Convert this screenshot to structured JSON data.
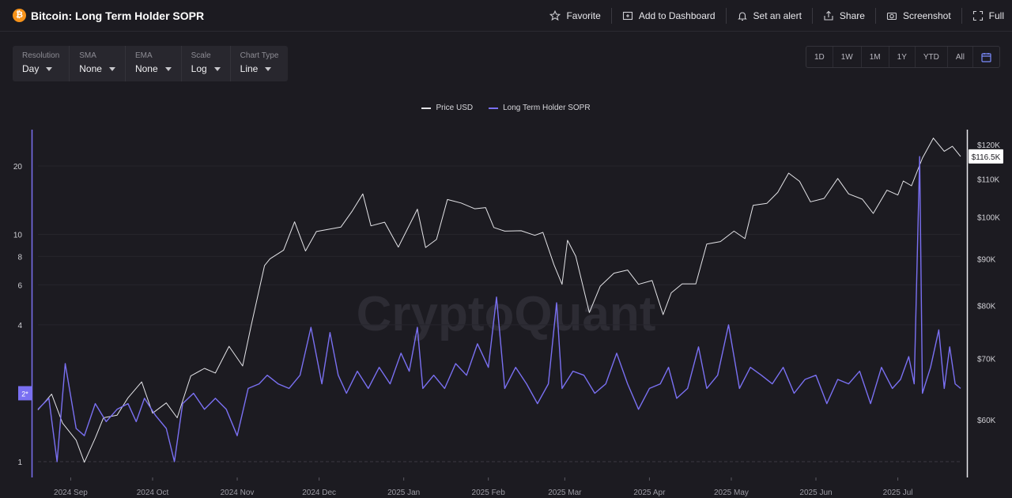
{
  "header": {
    "coin_icon": "bitcoin-icon",
    "title": "Bitcoin: Long Term Holder SOPR",
    "actions": [
      {
        "id": "favorite",
        "icon": "star-icon",
        "label": "Favorite"
      },
      {
        "id": "add-to-dashboard",
        "icon": "dashboard-add-icon",
        "label": "Add to Dashboard"
      },
      {
        "id": "set-alert",
        "icon": "bell-icon",
        "label": "Set an alert"
      },
      {
        "id": "share",
        "icon": "share-icon",
        "label": "Share"
      },
      {
        "id": "screenshot",
        "icon": "camera-icon",
        "label": "Screenshot"
      },
      {
        "id": "full",
        "icon": "fullscreen-icon",
        "label": "Full"
      }
    ]
  },
  "controls": [
    {
      "label": "Resolution",
      "value": "Day"
    },
    {
      "label": "SMA",
      "value": "None"
    },
    {
      "label": "EMA",
      "value": "None"
    },
    {
      "label": "Scale",
      "value": "Log"
    },
    {
      "label": "Chart Type",
      "value": "Line"
    }
  ],
  "ranges": [
    "1D",
    "1W",
    "1M",
    "1Y",
    "YTD",
    "All"
  ],
  "range_calendar_icon": "calendar-icon",
  "watermark": "CryptoQuant",
  "colors": {
    "price": "#e4e4e8",
    "sopr": "#7a70f2",
    "background": "#1c1b21",
    "price_badge_bg": "#ffffff",
    "sopr_badge_bg": "#7a70f2"
  },
  "chart_data": {
    "type": "line",
    "legend": [
      "Price USD",
      "Long Term Holder SOPR"
    ],
    "legend_position": "top-center",
    "left_axis": {
      "scale": "log",
      "ticks": [
        1,
        2,
        4,
        6,
        8,
        10,
        20
      ],
      "badge": "2*"
    },
    "right_axis": {
      "scale": "log",
      "ticks": [
        "$120K",
        "$110K",
        "$100K",
        "$90K",
        "$80K",
        "$70K",
        "$60K"
      ],
      "tick_values": [
        120000,
        110000,
        100000,
        90000,
        80000,
        70000,
        60000
      ],
      "current_value_label": "$116.5K"
    },
    "x_labels": [
      "2024 Sep",
      "2024 Oct",
      "2024 Nov",
      "2024 Dec",
      "2025 Jan",
      "2025 Feb",
      "2025 Mar",
      "2025 Apr",
      "2025 May",
      "2025 Jun",
      "2025 Jul"
    ],
    "x_start": "2024-08-20",
    "x_end": "2025-07-24",
    "series": [
      {
        "name": "Price USD",
        "axis": "right",
        "points": [
          [
            "2024-08-20",
            61500
          ],
          [
            "2024-08-25",
            64000
          ],
          [
            "2024-08-29",
            59500
          ],
          [
            "2024-09-03",
            57000
          ],
          [
            "2024-09-06",
            53900
          ],
          [
            "2024-09-10",
            57300
          ],
          [
            "2024-09-13",
            60300
          ],
          [
            "2024-09-18",
            60700
          ],
          [
            "2024-09-22",
            63400
          ],
          [
            "2024-09-27",
            66000
          ],
          [
            "2024-10-01",
            61000
          ],
          [
            "2024-10-06",
            62600
          ],
          [
            "2024-10-10",
            60300
          ],
          [
            "2024-10-15",
            67000
          ],
          [
            "2024-10-20",
            68300
          ],
          [
            "2024-10-24",
            67500
          ],
          [
            "2024-10-29",
            72200
          ],
          [
            "2024-11-03",
            68700
          ],
          [
            "2024-11-06",
            75800
          ],
          [
            "2024-11-11",
            88500
          ],
          [
            "2024-11-13",
            90000
          ],
          [
            "2024-11-18",
            92000
          ],
          [
            "2024-11-22",
            98800
          ],
          [
            "2024-11-26",
            91800
          ],
          [
            "2024-11-30",
            96400
          ],
          [
            "2024-12-05",
            97000
          ],
          [
            "2024-12-09",
            97500
          ],
          [
            "2024-12-13",
            101400
          ],
          [
            "2024-12-17",
            106000
          ],
          [
            "2024-12-20",
            97800
          ],
          [
            "2024-12-25",
            98700
          ],
          [
            "2024-12-30",
            92700
          ],
          [
            "2025-01-06",
            102000
          ],
          [
            "2025-01-09",
            92600
          ],
          [
            "2025-01-13",
            94500
          ],
          [
            "2025-01-17",
            104500
          ],
          [
            "2025-01-22",
            103600
          ],
          [
            "2025-01-27",
            102100
          ],
          [
            "2025-01-31",
            102400
          ],
          [
            "2025-02-03",
            97400
          ],
          [
            "2025-02-07",
            96500
          ],
          [
            "2025-02-13",
            96600
          ],
          [
            "2025-02-18",
            95500
          ],
          [
            "2025-02-21",
            96200
          ],
          [
            "2025-02-25",
            88700
          ],
          [
            "2025-02-28",
            84400
          ],
          [
            "2025-03-02",
            94300
          ],
          [
            "2025-03-05",
            90600
          ],
          [
            "2025-03-10",
            78600
          ],
          [
            "2025-03-14",
            84000
          ],
          [
            "2025-03-19",
            86800
          ],
          [
            "2025-03-24",
            87500
          ],
          [
            "2025-03-28",
            84400
          ],
          [
            "2025-04-02",
            85200
          ],
          [
            "2025-04-06",
            78200
          ],
          [
            "2025-04-09",
            82600
          ],
          [
            "2025-04-13",
            84500
          ],
          [
            "2025-04-18",
            84500
          ],
          [
            "2025-04-22",
            93400
          ],
          [
            "2025-04-27",
            94000
          ],
          [
            "2025-05-02",
            96500
          ],
          [
            "2025-05-06",
            94700
          ],
          [
            "2025-05-09",
            103000
          ],
          [
            "2025-05-14",
            103500
          ],
          [
            "2025-05-18",
            106400
          ],
          [
            "2025-05-22",
            111700
          ],
          [
            "2025-05-26",
            109400
          ],
          [
            "2025-05-30",
            103900
          ],
          [
            "2025-06-04",
            104800
          ],
          [
            "2025-06-09",
            110200
          ],
          [
            "2025-06-13",
            106000
          ],
          [
            "2025-06-18",
            104600
          ],
          [
            "2025-06-22",
            100900
          ],
          [
            "2025-06-27",
            107000
          ],
          [
            "2025-07-01",
            105700
          ],
          [
            "2025-07-03",
            109500
          ],
          [
            "2025-07-06",
            108200
          ],
          [
            "2025-07-10",
            116000
          ],
          [
            "2025-07-14",
            122000
          ],
          [
            "2025-07-18",
            118000
          ],
          [
            "2025-07-21",
            119500
          ],
          [
            "2025-07-24",
            116500
          ]
        ]
      },
      {
        "name": "Long Term Holder SOPR",
        "axis": "left",
        "points": [
          [
            "2024-08-20",
            1.7
          ],
          [
            "2024-08-24",
            1.9
          ],
          [
            "2024-08-27",
            1.0
          ],
          [
            "2024-08-30",
            2.7
          ],
          [
            "2024-09-03",
            1.4
          ],
          [
            "2024-09-06",
            1.3
          ],
          [
            "2024-09-10",
            1.8
          ],
          [
            "2024-09-14",
            1.5
          ],
          [
            "2024-09-18",
            1.7
          ],
          [
            "2024-09-22",
            1.8
          ],
          [
            "2024-09-25",
            1.5
          ],
          [
            "2024-09-28",
            1.9
          ],
          [
            "2024-10-02",
            1.6
          ],
          [
            "2024-10-06",
            1.4
          ],
          [
            "2024-10-09",
            1.0
          ],
          [
            "2024-10-12",
            1.8
          ],
          [
            "2024-10-16",
            2.0
          ],
          [
            "2024-10-20",
            1.7
          ],
          [
            "2024-10-24",
            1.9
          ],
          [
            "2024-10-28",
            1.7
          ],
          [
            "2024-11-01",
            1.3
          ],
          [
            "2024-11-05",
            2.1
          ],
          [
            "2024-11-09",
            2.2
          ],
          [
            "2024-11-12",
            2.4
          ],
          [
            "2024-11-16",
            2.2
          ],
          [
            "2024-11-20",
            2.1
          ],
          [
            "2024-11-24",
            2.4
          ],
          [
            "2024-11-28",
            3.9
          ],
          [
            "2024-12-02",
            2.2
          ],
          [
            "2024-12-05",
            3.7
          ],
          [
            "2024-12-08",
            2.4
          ],
          [
            "2024-12-11",
            2.0
          ],
          [
            "2024-12-15",
            2.5
          ],
          [
            "2024-12-19",
            2.1
          ],
          [
            "2024-12-23",
            2.6
          ],
          [
            "2024-12-27",
            2.2
          ],
          [
            "2024-12-31",
            3.0
          ],
          [
            "2025-01-03",
            2.5
          ],
          [
            "2025-01-06",
            3.9
          ],
          [
            "2025-01-08",
            2.1
          ],
          [
            "2025-01-12",
            2.4
          ],
          [
            "2025-01-16",
            2.1
          ],
          [
            "2025-01-20",
            2.7
          ],
          [
            "2025-01-24",
            2.4
          ],
          [
            "2025-01-28",
            3.3
          ],
          [
            "2025-02-01",
            2.6
          ],
          [
            "2025-02-04",
            5.3
          ],
          [
            "2025-02-07",
            2.1
          ],
          [
            "2025-02-11",
            2.6
          ],
          [
            "2025-02-15",
            2.2
          ],
          [
            "2025-02-19",
            1.8
          ],
          [
            "2025-02-23",
            2.2
          ],
          [
            "2025-02-26",
            5.0
          ],
          [
            "2025-02-28",
            2.1
          ],
          [
            "2025-03-04",
            2.5
          ],
          [
            "2025-03-08",
            2.4
          ],
          [
            "2025-03-12",
            2.0
          ],
          [
            "2025-03-16",
            2.2
          ],
          [
            "2025-03-20",
            3.0
          ],
          [
            "2025-03-24",
            2.2
          ],
          [
            "2025-03-28",
            1.7
          ],
          [
            "2025-04-01",
            2.1
          ],
          [
            "2025-04-05",
            2.2
          ],
          [
            "2025-04-08",
            2.6
          ],
          [
            "2025-04-11",
            1.9
          ],
          [
            "2025-04-15",
            2.1
          ],
          [
            "2025-04-19",
            3.2
          ],
          [
            "2025-04-22",
            2.1
          ],
          [
            "2025-04-26",
            2.4
          ],
          [
            "2025-04-30",
            4.0
          ],
          [
            "2025-05-04",
            2.1
          ],
          [
            "2025-05-08",
            2.6
          ],
          [
            "2025-05-12",
            2.4
          ],
          [
            "2025-05-16",
            2.2
          ],
          [
            "2025-05-20",
            2.6
          ],
          [
            "2025-05-24",
            2.0
          ],
          [
            "2025-05-28",
            2.3
          ],
          [
            "2025-06-01",
            2.4
          ],
          [
            "2025-06-05",
            1.8
          ],
          [
            "2025-06-09",
            2.3
          ],
          [
            "2025-06-13",
            2.2
          ],
          [
            "2025-06-17",
            2.5
          ],
          [
            "2025-06-21",
            1.8
          ],
          [
            "2025-06-25",
            2.6
          ],
          [
            "2025-06-29",
            2.1
          ],
          [
            "2025-07-02",
            2.3
          ],
          [
            "2025-07-05",
            2.9
          ],
          [
            "2025-07-07",
            2.2
          ],
          [
            "2025-07-09",
            22.0
          ],
          [
            "2025-07-10",
            2.0
          ],
          [
            "2025-07-13",
            2.6
          ],
          [
            "2025-07-16",
            3.8
          ],
          [
            "2025-07-18",
            2.1
          ],
          [
            "2025-07-20",
            3.2
          ],
          [
            "2025-07-22",
            2.2
          ],
          [
            "2025-07-24",
            2.1
          ]
        ]
      }
    ]
  }
}
